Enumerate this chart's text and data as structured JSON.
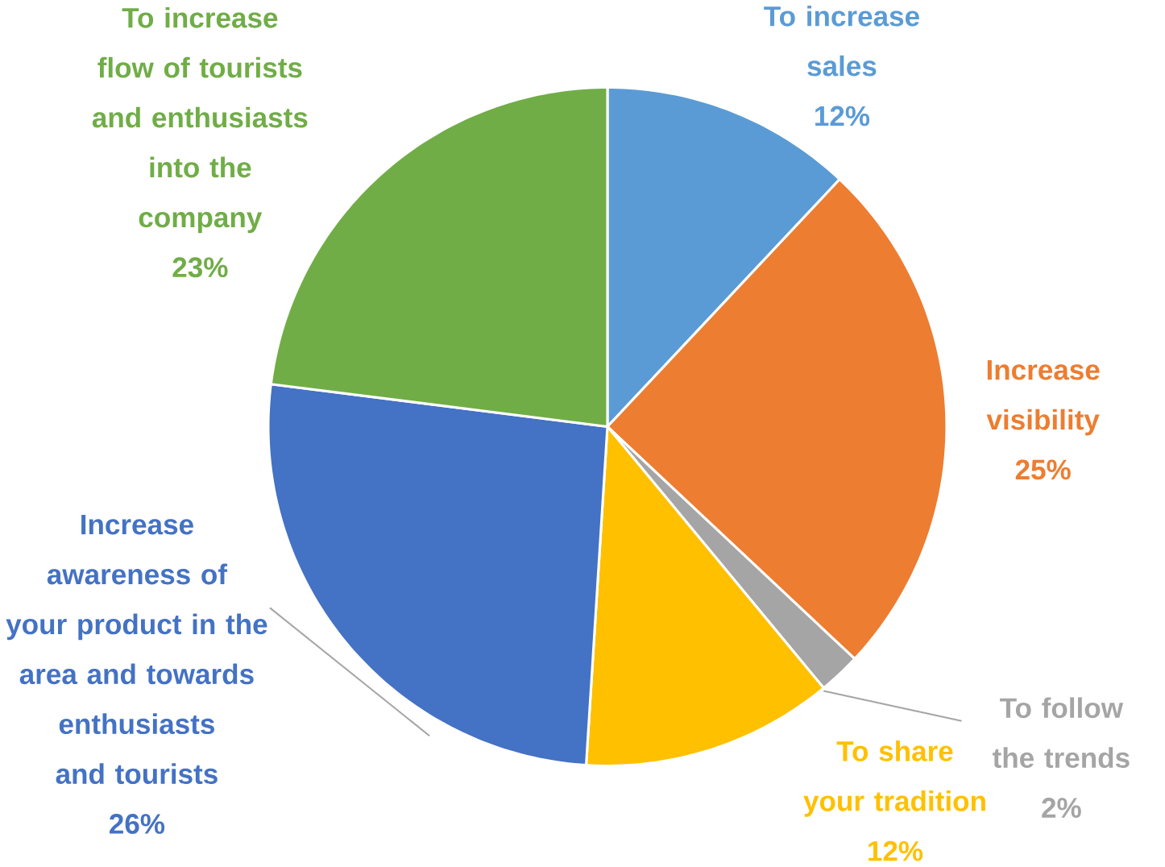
{
  "chart_data": {
    "type": "pie",
    "categories": [
      "To increase sales",
      "Increase visibility",
      "To follow the trends",
      "To share your tradition",
      "Increase awareness of your product in the area and towards enthusiasts and tourists",
      "To increase flow of tourists and enthusiasts into the company"
    ],
    "values": [
      12,
      25,
      2,
      12,
      26,
      23
    ],
    "value_labels": [
      "12%",
      "25%",
      "2%",
      "12%",
      "26%",
      "23%"
    ],
    "colors": [
      "#5b9bd5",
      "#ed7d31",
      "#a5a5a5",
      "#ffc000",
      "#4472c4",
      "#70ad47"
    ]
  }
}
